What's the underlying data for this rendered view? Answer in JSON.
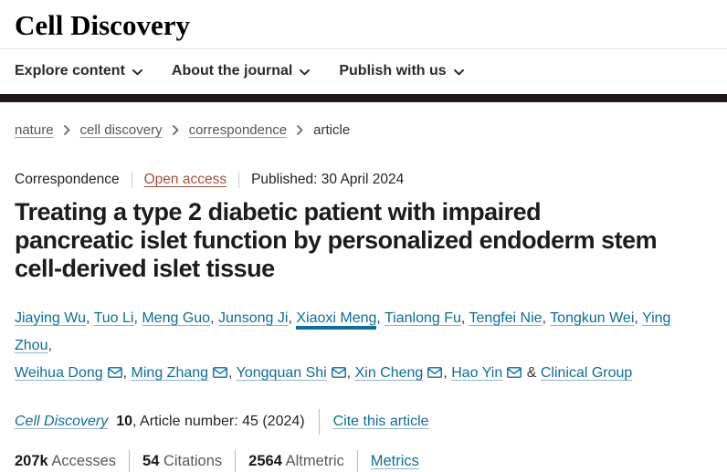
{
  "colors": {
    "brand_bar": "#241517",
    "link": "#0c6d9e",
    "open_access": "#aa4f38"
  },
  "icons": {
    "chevron_down": "⌄",
    "chevron_right": "›",
    "email": "✉"
  },
  "header": {
    "logo": "Cell Discovery",
    "nav": [
      {
        "label": "Explore content"
      },
      {
        "label": "About the journal"
      },
      {
        "label": "Publish with us"
      }
    ]
  },
  "breadcrumb": [
    {
      "label": "nature"
    },
    {
      "label": "cell discovery"
    },
    {
      "label": "correspondence"
    },
    {
      "label": "article"
    }
  ],
  "article": {
    "type_label": "Correspondence",
    "open_access_label": "Open access",
    "published_label": "Published: 30 April 2024",
    "title": "Treating a type 2 diabetic patient with impaired pancreatic islet function by personalized endoderm stem cell-derived islet tissue",
    "authors": [
      {
        "name": "Jiaying Wu"
      },
      {
        "name": "Tuo Li"
      },
      {
        "name": "Meng Guo"
      },
      {
        "name": "Junsong Ji"
      },
      {
        "name": "Xiaoxi Meng",
        "hover": true
      },
      {
        "name": "Tianlong Fu"
      },
      {
        "name": "Tengfei Nie"
      },
      {
        "name": "Tongkun Wei"
      },
      {
        "name": "Ying Zhou",
        "break_after": true
      },
      {
        "name": "Weihua Dong",
        "email": true
      },
      {
        "name": "Ming Zhang",
        "email": true
      },
      {
        "name": "Yongquan Shi",
        "email": true
      },
      {
        "name": "Xin Cheng",
        "email": true
      },
      {
        "name": "Hao Yin",
        "email": true
      },
      {
        "name": "Clinical Group",
        "group": true
      }
    ],
    "journal": {
      "name": "Cell Discovery",
      "volume": "10",
      "article_info": ", Article number: 45 (2024)",
      "cite_label": "Cite this article"
    },
    "metrics": [
      {
        "value": "207k",
        "label": "Accesses"
      },
      {
        "value": "54",
        "label": "Citations"
      },
      {
        "value": "2564",
        "label": "Altmetric"
      },
      {
        "value": "",
        "label": "Metrics",
        "link": true
      }
    ]
  }
}
